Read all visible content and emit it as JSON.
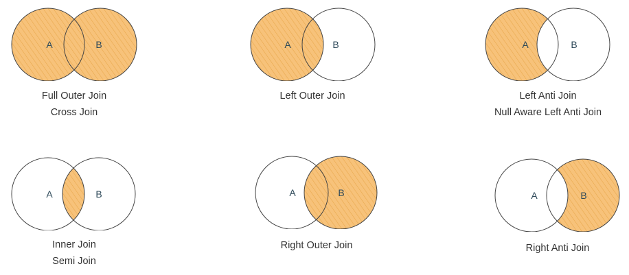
{
  "colors": {
    "fill": "#f7c27a",
    "stroke": "#444444",
    "label": "#2f4a5a",
    "hatch": "#e9a84d"
  },
  "diagrams": [
    {
      "a_label": "A",
      "b_label": "B",
      "caption": [
        "Full Outer Join",
        "Cross Join"
      ],
      "shaded": "full"
    },
    {
      "a_label": "A",
      "b_label": "B",
      "caption": [
        "Left Outer Join"
      ],
      "shaded": "left"
    },
    {
      "a_label": "A",
      "b_label": "B",
      "caption": [
        "Left Anti Join",
        "Null Aware Left Anti Join"
      ],
      "shaded": "left-anti"
    },
    {
      "a_label": "A",
      "b_label": "B",
      "caption": [
        "Inner Join",
        "Semi Join"
      ],
      "shaded": "inner"
    },
    {
      "a_label": "A",
      "b_label": "B",
      "caption": [
        "Right Outer Join"
      ],
      "shaded": "right"
    },
    {
      "a_label": "A",
      "b_label": "B",
      "caption": [
        "Right Anti Join"
      ],
      "shaded": "right-anti"
    }
  ]
}
